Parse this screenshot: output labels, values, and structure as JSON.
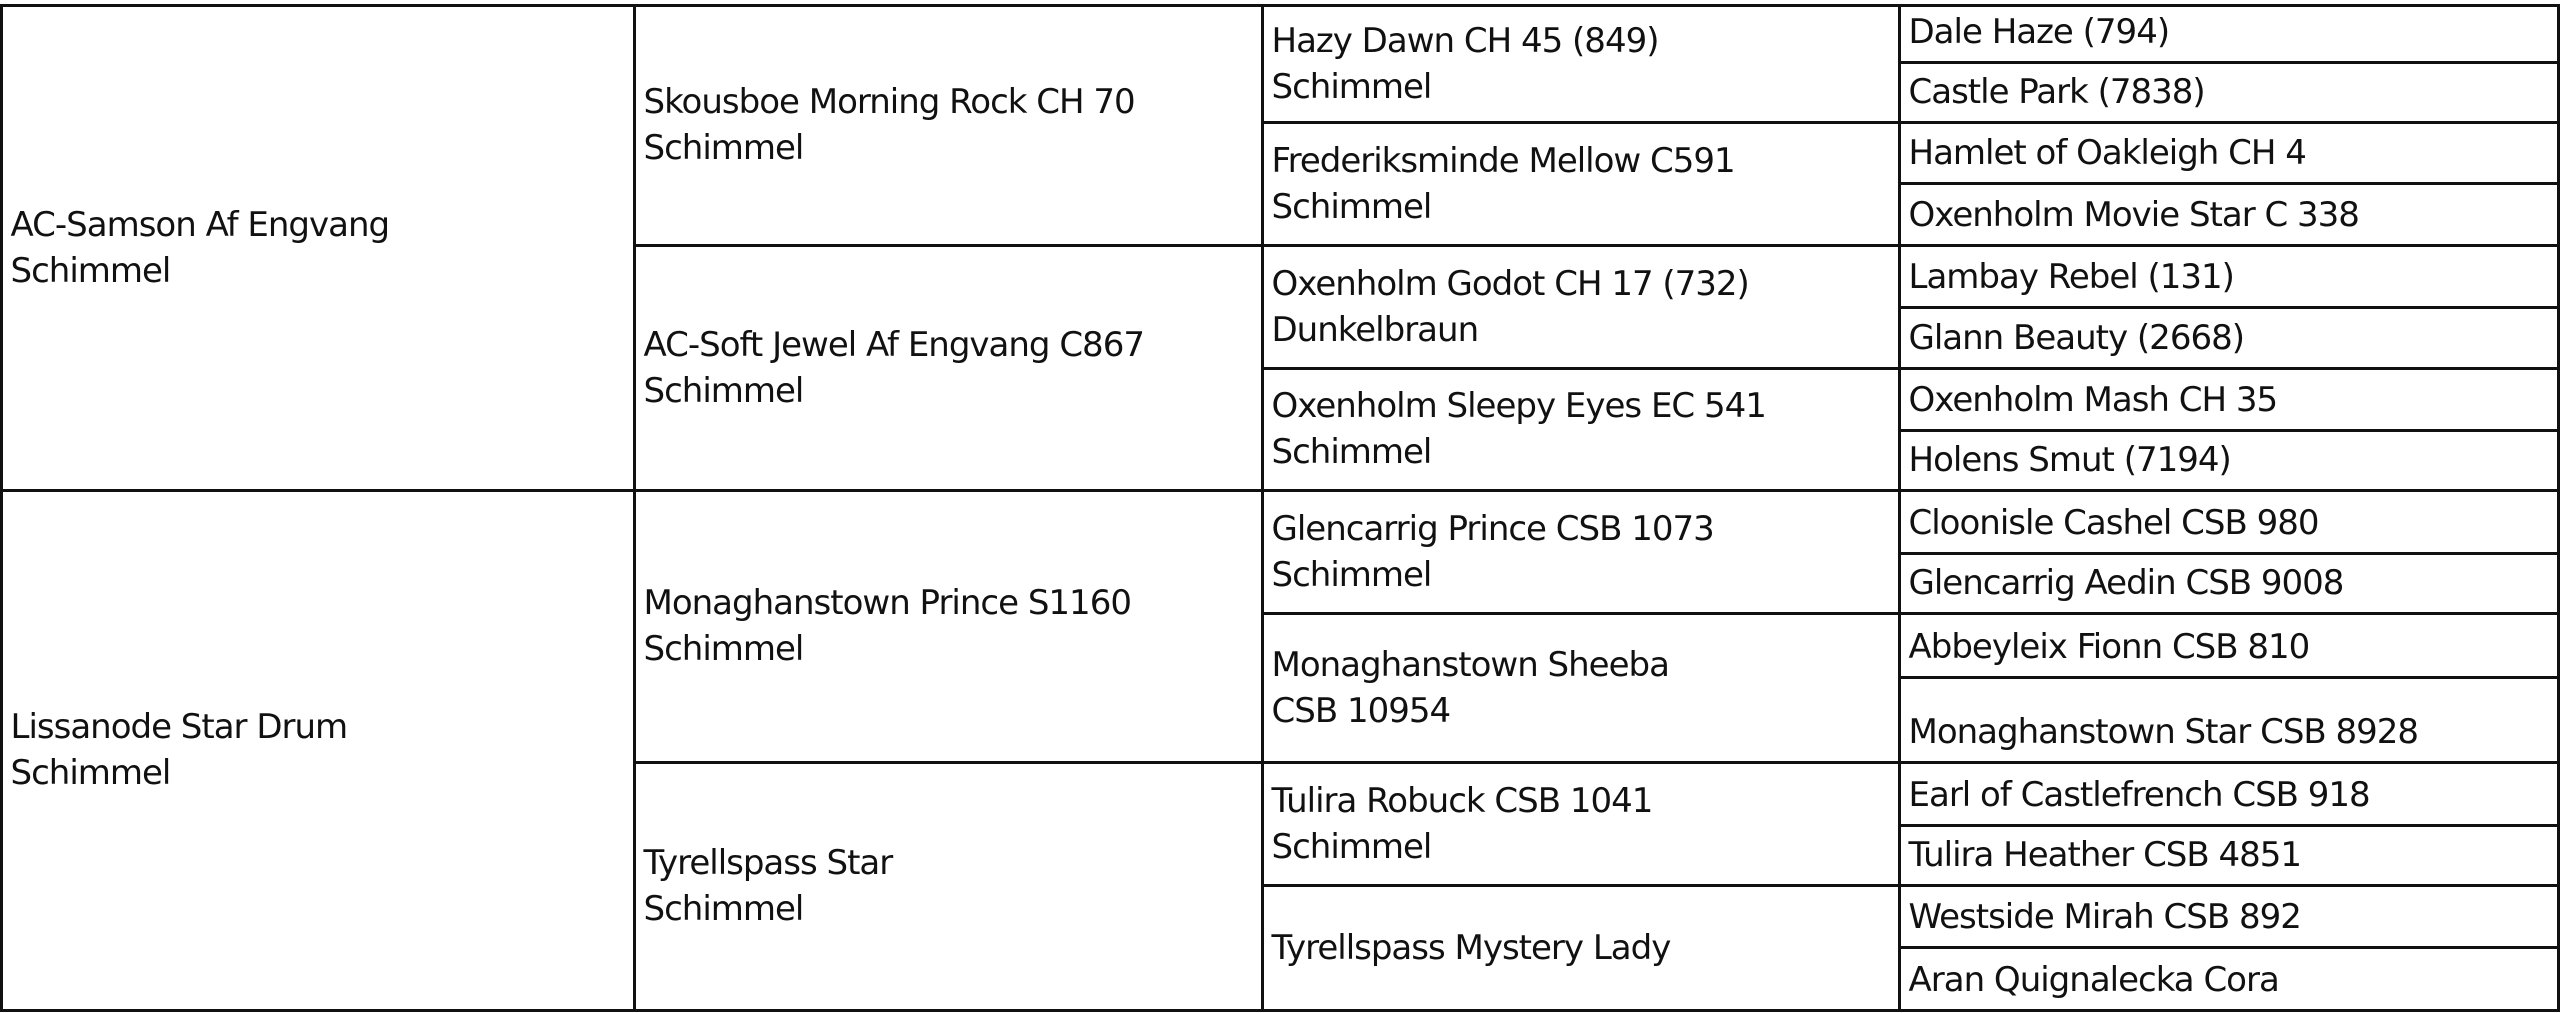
{
  "pedigree": {
    "generation1": [
      {
        "name": "AC-Samson Af Engvang",
        "color": "Schimmel"
      },
      {
        "name": "Lissanode Star Drum",
        "color": "Schimmel"
      }
    ],
    "generation2": [
      {
        "name": "Skousboe Morning Rock CH 70",
        "color": "Schimmel"
      },
      {
        "name": "AC-Soft Jewel Af Engvang C867",
        "color": "Schimmel"
      },
      {
        "name": "Monaghanstown Prince S1160",
        "color": "Schimmel"
      },
      {
        "name": "Tyrellspass Star",
        "color": "Schimmel"
      }
    ],
    "generation3": [
      {
        "name": "Hazy Dawn CH 45 (849)",
        "color": "Schimmel"
      },
      {
        "name": "Frederiksminde Mellow C591",
        "color": "Schimmel"
      },
      {
        "name": "Oxenholm Godot CH 17 (732)",
        "color": "Dunkelbraun"
      },
      {
        "name": "Oxenholm Sleepy Eyes EC 541",
        "color": "Schimmel"
      },
      {
        "name": "Glencarrig Prince CSB 1073",
        "color": "Schimmel"
      },
      {
        "name": "Monaghanstown Sheeba",
        "color": "CSB 10954"
      },
      {
        "name": "Tulira Robuck CSB 1041",
        "color": "Schimmel"
      },
      {
        "name": "Tyrellspass Mystery Lady",
        "color": ""
      }
    ],
    "generation4": [
      {
        "name": "Dale Haze (794)"
      },
      {
        "name": "Castle Park (7838)"
      },
      {
        "name": "Hamlet of Oakleigh CH 4"
      },
      {
        "name": "Oxenholm Movie Star C 338"
      },
      {
        "name": "Lambay Rebel (131)"
      },
      {
        "name": "Glann Beauty (2668)"
      },
      {
        "name": "Oxenholm Mash CH 35"
      },
      {
        "name": "Holens Smut (7194)"
      },
      {
        "name": "Cloonisle Cashel CSB 980"
      },
      {
        "name": "Glencarrig Aedin CSB 9008"
      },
      {
        "name": "Abbeyleix Fionn CSB 810"
      },
      {
        "name": "Monaghanstown Star CSB 8928"
      },
      {
        "name": "Earl of Castlefrench CSB 918"
      },
      {
        "name": "Tulira Heather CSB 4851"
      },
      {
        "name": "Westside Mirah CSB 892"
      },
      {
        "name": "Aran Quignalecka Cora"
      }
    ]
  }
}
